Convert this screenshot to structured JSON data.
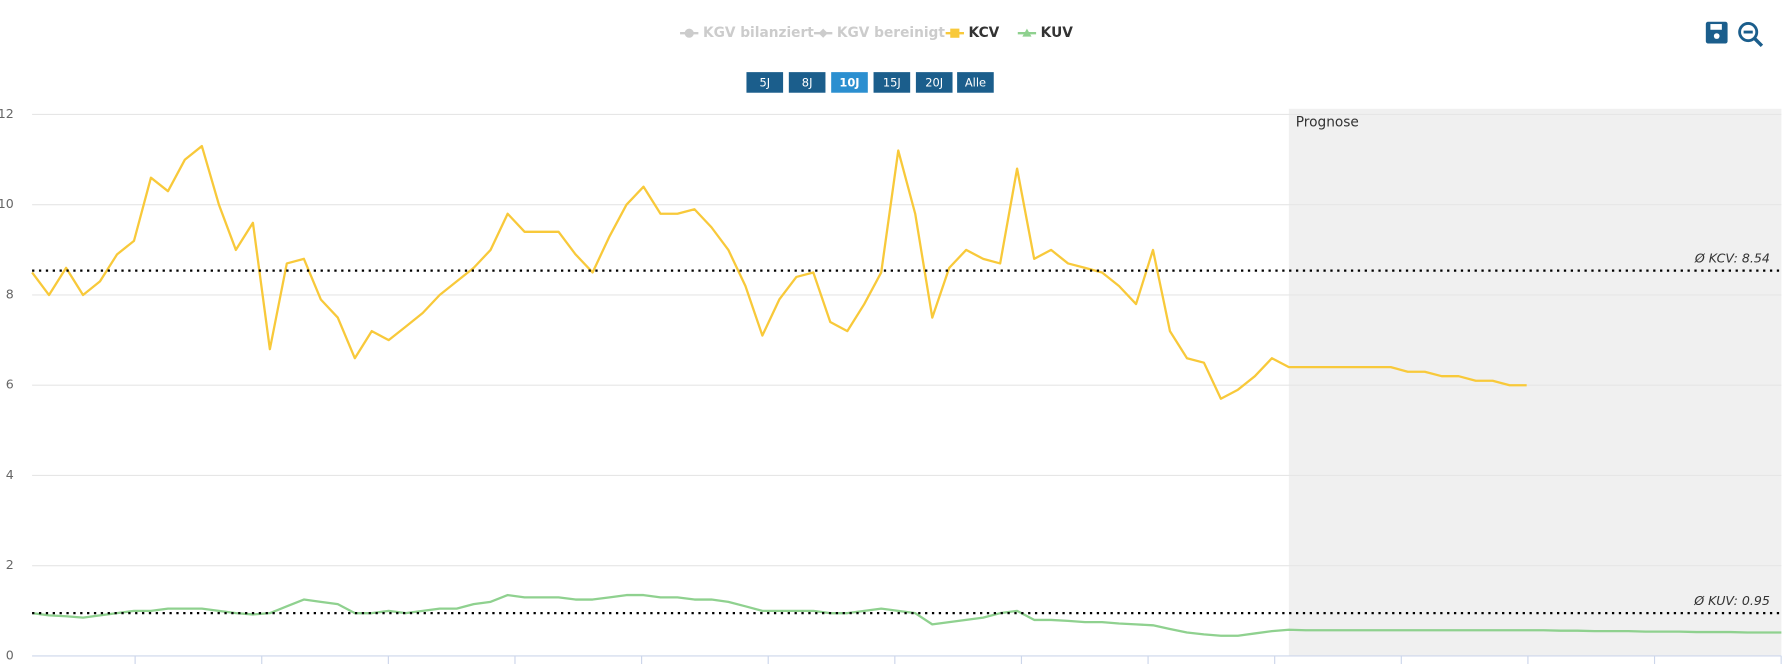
{
  "chart_data": {
    "type": "line",
    "legend_hidden": [
      {
        "name": "KGV bilanziert",
        "marker": "circle",
        "color": "#cccccc"
      },
      {
        "name": "KGV bereinigt",
        "marker": "diamond",
        "color": "#cccccc"
      }
    ],
    "range_buttons": {
      "labels": [
        "5J",
        "8J",
        "10J",
        "15J",
        "20J",
        "Alle"
      ],
      "active": 2
    },
    "forecast": {
      "label": "Prognose",
      "start_index": 74
    },
    "ylim": [
      0,
      12
    ],
    "yticks": [
      0,
      2,
      4,
      6,
      8,
      10,
      12
    ],
    "grid": true,
    "series": [
      {
        "name": "KCV",
        "color": "#f8c93a",
        "marker": "square",
        "values": [
          8.5,
          8.0,
          8.6,
          8.0,
          8.3,
          8.9,
          9.2,
          10.6,
          10.3,
          11.0,
          11.3,
          10.0,
          9.0,
          9.6,
          6.8,
          8.7,
          8.8,
          7.9,
          7.5,
          6.6,
          7.2,
          7.0,
          7.3,
          7.6,
          8.0,
          8.3,
          8.6,
          9.0,
          9.8,
          9.4,
          9.4,
          9.4,
          8.9,
          8.5,
          9.3,
          10.0,
          10.4,
          9.8,
          9.8,
          9.9,
          9.5,
          9.0,
          8.2,
          7.1,
          7.9,
          8.4,
          8.5,
          7.4,
          7.2,
          7.8,
          8.5,
          11.2,
          9.8,
          7.5,
          8.6,
          9.0,
          8.8,
          8.7,
          10.8,
          8.8,
          9.0,
          8.7,
          8.6,
          8.5,
          8.2,
          7.8,
          9.0,
          7.2,
          6.6,
          6.5,
          5.7,
          5.9,
          6.2,
          6.6,
          6.4,
          6.4,
          6.4,
          6.4,
          6.4,
          6.4,
          6.4,
          6.3,
          6.3,
          6.2,
          6.2,
          6.1,
          6.1,
          6.0,
          6.0,
          null,
          null,
          null,
          null,
          null,
          null,
          null,
          null,
          null,
          null,
          null,
          null,
          null,
          null,
          null
        ],
        "average": {
          "value": 8.54,
          "label": "Ø KCV: 8.54"
        }
      },
      {
        "name": "KUV",
        "color": "#8fd18f",
        "marker": "triangle",
        "values": [
          0.95,
          0.9,
          0.88,
          0.85,
          0.9,
          0.95,
          1.0,
          1.0,
          1.05,
          1.05,
          1.05,
          1.0,
          0.95,
          0.92,
          0.95,
          1.1,
          1.25,
          1.2,
          1.15,
          0.95,
          0.95,
          1.0,
          0.95,
          1.0,
          1.05,
          1.05,
          1.15,
          1.2,
          1.35,
          1.3,
          1.3,
          1.3,
          1.25,
          1.25,
          1.3,
          1.35,
          1.35,
          1.3,
          1.3,
          1.25,
          1.25,
          1.2,
          1.1,
          1.0,
          1.0,
          1.0,
          1.0,
          0.95,
          0.95,
          1.0,
          1.05,
          1.0,
          0.95,
          0.7,
          0.75,
          0.8,
          0.85,
          0.95,
          1.0,
          0.8,
          0.8,
          0.78,
          0.75,
          0.75,
          0.72,
          0.7,
          0.68,
          0.6,
          0.52,
          0.48,
          0.45,
          0.45,
          0.5,
          0.55,
          0.58,
          0.57,
          0.57,
          0.57,
          0.57,
          0.57,
          0.57,
          0.57,
          0.57,
          0.57,
          0.57,
          0.57,
          0.57,
          0.57,
          0.57,
          0.57,
          0.56,
          0.56,
          0.55,
          0.55,
          0.55,
          0.54,
          0.54,
          0.54,
          0.53,
          0.53,
          0.53,
          0.52,
          0.52,
          0.52
        ],
        "average": {
          "value": 0.95,
          "label": "Ø KUV: 0.95"
        }
      }
    ]
  }
}
